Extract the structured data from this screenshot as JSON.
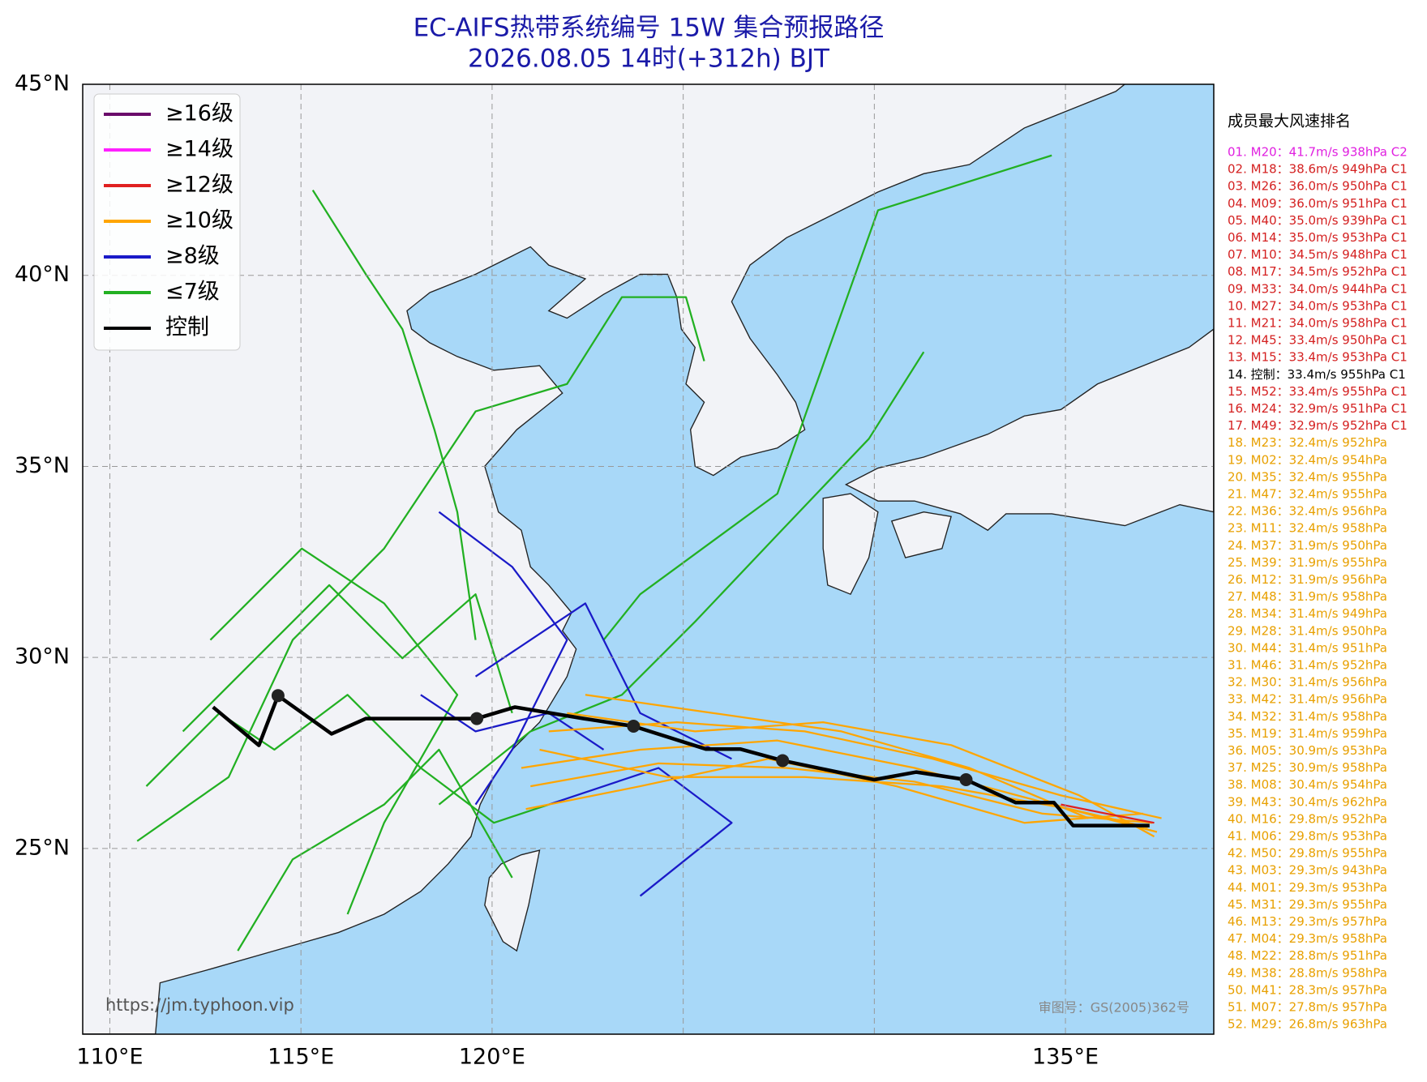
{
  "title": "EC-AIFS热带系统编号 15W 集合预报路径",
  "subtitle": "2026.08.05 14时(+312h) BJT",
  "map": {
    "lon_range": [
      109.29,
      138.88
    ],
    "lat_range": [
      20.14,
      45
    ],
    "lon_ticks": [
      {
        "value": 110,
        "label": "110°E"
      },
      {
        "value": 115,
        "label": "115°E"
      },
      {
        "value": 120,
        "label": "120°E"
      },
      {
        "value": 135,
        "label": "135°E"
      }
    ],
    "lon_grid": [
      110,
      115,
      120,
      125,
      130,
      135
    ],
    "lat_ticks": [
      {
        "value": 45,
        "label": "45°N"
      },
      {
        "value": 40,
        "label": "40°N"
      },
      {
        "value": 35,
        "label": "35°N"
      },
      {
        "value": 30,
        "label": "30°N"
      },
      {
        "value": 25,
        "label": "25°N"
      }
    ],
    "control_track": {
      "lon": [
        137.2,
        135.2,
        134.7,
        133.7,
        132.4,
        131.1,
        130.0,
        127.6,
        126.5,
        125.6,
        123.7,
        122.4,
        120.6,
        119.6,
        116.7,
        115.8,
        114.4,
        113.9,
        112.7
      ],
      "lat": [
        25.6,
        25.6,
        26.2,
        26.2,
        26.8,
        27.0,
        26.8,
        27.3,
        27.6,
        27.6,
        28.2,
        28.4,
        28.7,
        28.4,
        28.4,
        28.0,
        29.0,
        27.7,
        28.7
      ]
    },
    "control_points": {
      "lon": [
        132.4,
        127.6,
        123.7,
        119.6,
        114.4
      ],
      "lat": [
        26.8,
        27.3,
        28.2,
        28.4,
        29.0
      ]
    }
  },
  "legend": [
    {
      "label": "≥16级",
      "color": "#6a0a6a"
    },
    {
      "label": "≥14级",
      "color": "#ff20ff"
    },
    {
      "label": "≥12级",
      "color": "#e02020"
    },
    {
      "label": "≥10级",
      "color": "#ffa500"
    },
    {
      "label": "≥8级",
      "color": "#1a1ac8"
    },
    {
      "label": "≤7级",
      "color": "#22b022"
    },
    {
      "label": "控制",
      "color": "#000000"
    }
  ],
  "ranking": {
    "title": "成员最大风速排名",
    "items": [
      {
        "text": "01. M20：41.7m/s 938hPa C2",
        "color": "#e020e0"
      },
      {
        "text": "02. M18：38.6m/s 949hPa C1",
        "color": "#d42020"
      },
      {
        "text": "03. M26：36.0m/s 950hPa C1",
        "color": "#d42020"
      },
      {
        "text": "04. M09：36.0m/s 951hPa C1",
        "color": "#d42020"
      },
      {
        "text": "05. M40：35.0m/s 939hPa C1",
        "color": "#d42020"
      },
      {
        "text": "06. M14：35.0m/s 953hPa C1",
        "color": "#d42020"
      },
      {
        "text": "07. M10：34.5m/s 948hPa C1",
        "color": "#d42020"
      },
      {
        "text": "08. M17：34.5m/s 952hPa C1",
        "color": "#d42020"
      },
      {
        "text": "09. M33：34.0m/s 944hPa C1",
        "color": "#d42020"
      },
      {
        "text": "10. M27：34.0m/s 953hPa C1",
        "color": "#d42020"
      },
      {
        "text": "11. M21：34.0m/s 958hPa C1",
        "color": "#d42020"
      },
      {
        "text": "12. M45：33.4m/s 950hPa C1",
        "color": "#d42020"
      },
      {
        "text": "13. M15：33.4m/s 953hPa C1",
        "color": "#d42020"
      },
      {
        "text": "14. 控制：33.4m/s 955hPa C1",
        "color": "#000000"
      },
      {
        "text": "15. M52：33.4m/s 955hPa C1",
        "color": "#d42020"
      },
      {
        "text": "16. M24：32.9m/s 951hPa C1",
        "color": "#d42020"
      },
      {
        "text": "17. M49：32.9m/s 952hPa C1",
        "color": "#d42020"
      },
      {
        "text": "18. M23：32.4m/s 952hPa",
        "color": "#e8a000"
      },
      {
        "text": "19. M02：32.4m/s 954hPa",
        "color": "#e8a000"
      },
      {
        "text": "20. M35：32.4m/s 955hPa",
        "color": "#e8a000"
      },
      {
        "text": "21. M47：32.4m/s 955hPa",
        "color": "#e8a000"
      },
      {
        "text": "22. M36：32.4m/s 956hPa",
        "color": "#e8a000"
      },
      {
        "text": "23. M11：32.4m/s 958hPa",
        "color": "#e8a000"
      },
      {
        "text": "24. M37：31.9m/s 950hPa",
        "color": "#e8a000"
      },
      {
        "text": "25. M39：31.9m/s 955hPa",
        "color": "#e8a000"
      },
      {
        "text": "26. M12：31.9m/s 956hPa",
        "color": "#e8a000"
      },
      {
        "text": "27. M48：31.9m/s 958hPa",
        "color": "#e8a000"
      },
      {
        "text": "28. M34：31.4m/s 949hPa",
        "color": "#e8a000"
      },
      {
        "text": "29. M28：31.4m/s 950hPa",
        "color": "#e8a000"
      },
      {
        "text": "30. M44：31.4m/s 951hPa",
        "color": "#e8a000"
      },
      {
        "text": "31. M46：31.4m/s 952hPa",
        "color": "#e8a000"
      },
      {
        "text": "32. M30：31.4m/s 956hPa",
        "color": "#e8a000"
      },
      {
        "text": "33. M42：31.4m/s 956hPa",
        "color": "#e8a000"
      },
      {
        "text": "34. M32：31.4m/s 958hPa",
        "color": "#e8a000"
      },
      {
        "text": "35. M19：31.4m/s 959hPa",
        "color": "#e8a000"
      },
      {
        "text": "36. M05：30.9m/s 953hPa",
        "color": "#e8a000"
      },
      {
        "text": "37. M25：30.9m/s 958hPa",
        "color": "#e8a000"
      },
      {
        "text": "38. M08：30.4m/s 954hPa",
        "color": "#e8a000"
      },
      {
        "text": "39. M43：30.4m/s 962hPa",
        "color": "#e8a000"
      },
      {
        "text": "40. M16：29.8m/s 952hPa",
        "color": "#e8a000"
      },
      {
        "text": "41. M06：29.8m/s 953hPa",
        "color": "#e8a000"
      },
      {
        "text": "42. M50：29.8m/s 955hPa",
        "color": "#e8a000"
      },
      {
        "text": "43. M03：29.3m/s 943hPa",
        "color": "#e8a000"
      },
      {
        "text": "44. M01：29.3m/s 953hPa",
        "color": "#e8a000"
      },
      {
        "text": "45. M31：29.3m/s 955hPa",
        "color": "#e8a000"
      },
      {
        "text": "46. M13：29.3m/s 957hPa",
        "color": "#e8a000"
      },
      {
        "text": "47. M04：29.3m/s 958hPa",
        "color": "#e8a000"
      },
      {
        "text": "48. M22：28.8m/s 951hPa",
        "color": "#e8a000"
      },
      {
        "text": "49. M38：28.8m/s 958hPa",
        "color": "#e8a000"
      },
      {
        "text": "50. M41：28.3m/s 957hPa",
        "color": "#e8a000"
      },
      {
        "text": "51. M07：27.8m/s 957hPa",
        "color": "#e8a000"
      },
      {
        "text": "52. M29：26.8m/s 963hPa",
        "color": "#e8a000"
      }
    ]
  },
  "watermark": "https://jm.typhoon.vip",
  "approval": "审图号：GS(2005)362号"
}
